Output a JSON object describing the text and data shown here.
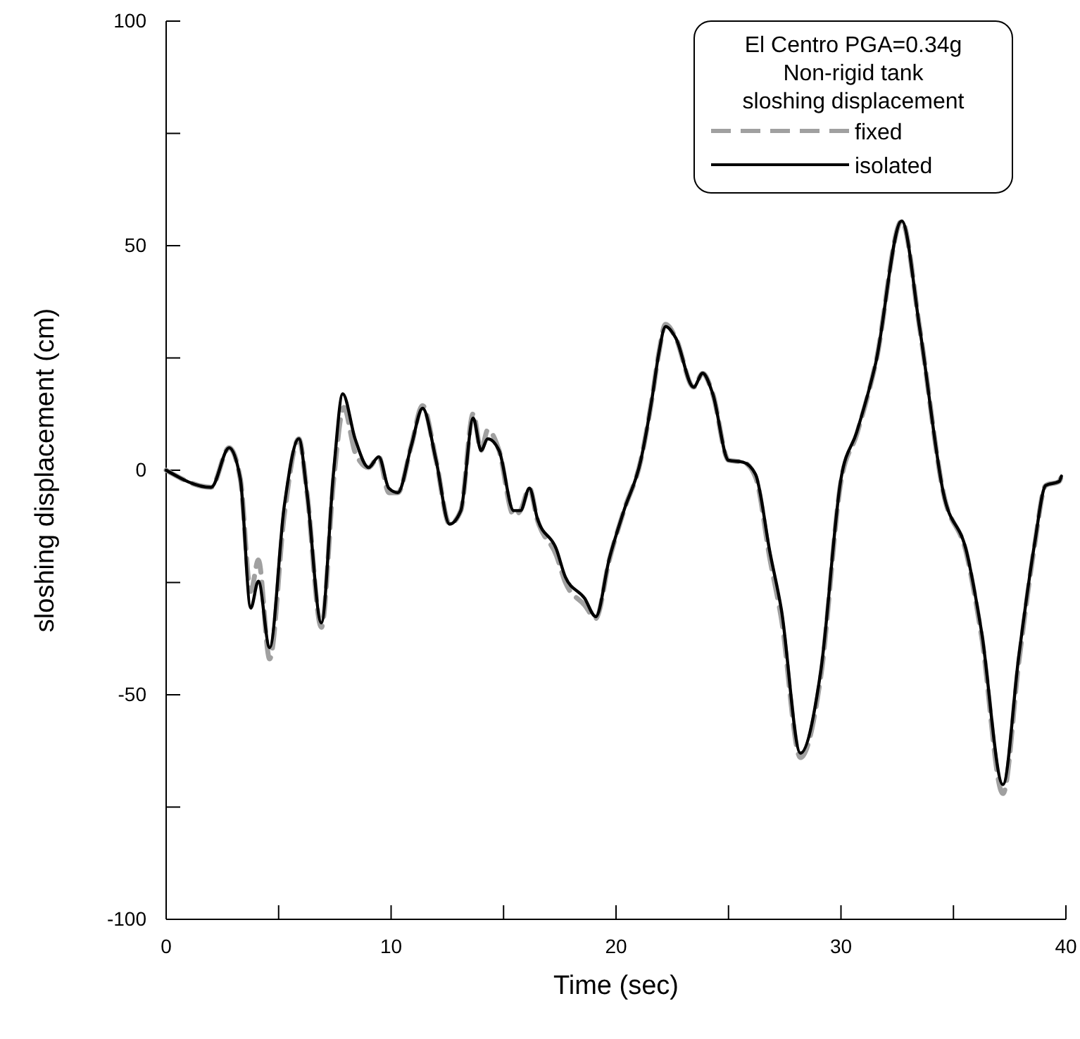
{
  "chart_data": {
    "type": "line",
    "xlabel": "Time (sec)",
    "ylabel": "sloshing displacement (cm)",
    "legend_title": "El Centro PGA=0.34g\nNon-rigid tank\nsloshing displacement",
    "legend": "top right",
    "grid": false,
    "marker": "none",
    "xlim": [
      0,
      40
    ],
    "ylim": [
      -100,
      100
    ],
    "xticks": [
      0,
      {
        "value": 5,
        "label": null
      },
      10,
      {
        "value": 15,
        "label": null
      },
      20,
      {
        "value": 25,
        "label": null
      },
      30,
      {
        "value": 35,
        "label": null
      },
      40
    ],
    "yticks": [
      -100,
      {
        "value": -75,
        "label": null
      },
      -50,
      {
        "value": -25,
        "label": null
      },
      0,
      {
        "value": 25,
        "label": null
      },
      50,
      {
        "value": 75,
        "label": null
      },
      100
    ],
    "series": [
      {
        "name": "fixed",
        "color": "#a0a0a0",
        "line_style": "dashed",
        "x": [
          0,
          2.0,
          2.8,
          3.3,
          3.76,
          4.1,
          4.6,
          5.25,
          5.9,
          6.26,
          6.9,
          7.45,
          7.9,
          8.4,
          9.0,
          9.45,
          9.9,
          10.3,
          10.9,
          11.4,
          12.0,
          12.6,
          13.1,
          13.65,
          14.0,
          14.3,
          14.8,
          15.45,
          15.75,
          16.15,
          16.5,
          17.35,
          17.75,
          18.6,
          19.1,
          19.7,
          20.35,
          21.1,
          21.6,
          21.9,
          22.2,
          22.65,
          23.45,
          23.85,
          24.3,
          25.0,
          25.65,
          26.2,
          26.85,
          27.35,
          28.2,
          29.1,
          30.0,
          30.7,
          31.55,
          32.7,
          33.5,
          34.55,
          35.6,
          36.25,
          37.2,
          37.9,
          38.6,
          39.1,
          39.7,
          39.8
        ],
        "values": [
          0,
          -3.8,
          5,
          -2,
          -27,
          -20,
          -42,
          -10,
          7,
          -5,
          -35,
          -2,
          14,
          4,
          0.6,
          3,
          -5,
          -5,
          5.5,
          14.4,
          2.2,
          -12,
          -9,
          12.6,
          4.4,
          9,
          4.4,
          -10,
          -9,
          -4,
          -11,
          -19,
          -25,
          -30,
          -33,
          -20,
          -9,
          2.2,
          16,
          26,
          32.5,
          29.5,
          18.5,
          21.6,
          17,
          2.2,
          1.8,
          -1.5,
          -20,
          -33,
          -64,
          -46,
          -2.5,
          8,
          24,
          55.5,
          31.6,
          -5,
          -19,
          -37,
          -72,
          -43,
          -17,
          -3.4,
          -2.5,
          -1.3
        ]
      },
      {
        "name": "isolated",
        "color": "#000000",
        "line_style": "solid",
        "x": [
          0,
          2.0,
          2.8,
          3.3,
          3.76,
          4.1,
          4.6,
          5.25,
          5.9,
          6.26,
          6.9,
          7.45,
          7.85,
          8.4,
          9.0,
          9.45,
          9.9,
          10.3,
          10.9,
          11.4,
          12.0,
          12.6,
          13.1,
          13.65,
          14.0,
          14.3,
          14.8,
          15.45,
          15.75,
          16.15,
          16.5,
          17.35,
          17.75,
          18.6,
          19.1,
          19.7,
          20.35,
          21.1,
          21.6,
          21.9,
          22.2,
          22.65,
          23.45,
          23.85,
          24.3,
          25.0,
          25.65,
          26.2,
          26.85,
          27.35,
          28.2,
          29.1,
          30.0,
          30.7,
          31.55,
          32.7,
          33.5,
          34.55,
          35.6,
          36.25,
          37.2,
          37.9,
          38.6,
          39.1,
          39.7,
          39.8
        ],
        "values": [
          0,
          -3.8,
          5,
          -2,
          -30.7,
          -24.7,
          -39.5,
          -8,
          7,
          -5,
          -34,
          0,
          17,
          7,
          0.6,
          3,
          -4,
          -5,
          5.5,
          13.8,
          2.2,
          -12,
          -9,
          11.6,
          4.4,
          7,
          4.4,
          -9,
          -9,
          -4,
          -10.7,
          -17.6,
          -23.8,
          -28.5,
          -32.6,
          -19.7,
          -9,
          2.2,
          16,
          26,
          32,
          29.5,
          18.5,
          21.6,
          17,
          2.2,
          1.8,
          -0.9,
          -18.5,
          -31,
          -63,
          -44.8,
          -1.9,
          8.5,
          24,
          55.5,
          31.6,
          -5,
          -18.5,
          -36,
          -70,
          -41.6,
          -16.6,
          -3.4,
          -2.5,
          -1.3
        ]
      }
    ]
  }
}
